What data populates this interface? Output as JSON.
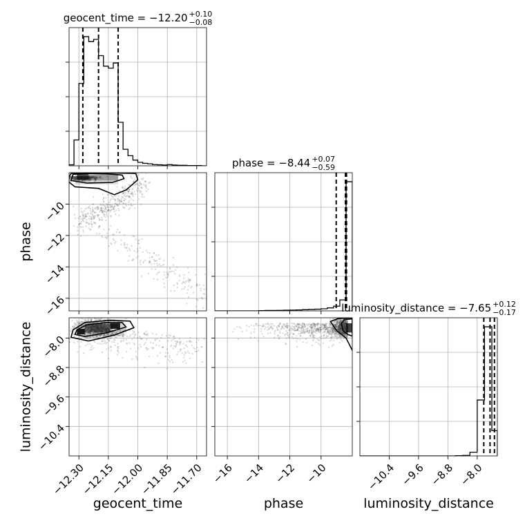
{
  "chart_data": {
    "type": "corner",
    "parameters": [
      "geocent_time",
      "phase",
      "luminosity_distance"
    ],
    "axis_labels": {
      "geocent_time": "geocent_time",
      "phase": "phase",
      "luminosity_distance": "luminosity_distance"
    },
    "titles": [
      {
        "param": "geocent_time",
        "text": "geocent_time = −12.20",
        "plus": "+0.10",
        "minus": "−0.08",
        "median": -12.2,
        "err_plus": 0.1,
        "err_minus": 0.08
      },
      {
        "param": "phase",
        "text": "phase = −8.44",
        "plus": "+0.07",
        "minus": "−0.59",
        "median": -8.44,
        "err_plus": 0.07,
        "err_minus": 0.59
      },
      {
        "param": "luminosity_distance",
        "text": "luminosity_distance = −7.65",
        "plus": "+0.12",
        "minus": "−0.17",
        "median": -7.65,
        "err_plus": 0.12,
        "err_minus": 0.17
      }
    ],
    "ranges": {
      "geocent_time": [
        -12.35,
        -11.65
      ],
      "phase": [
        -16.8,
        -8.0
      ],
      "luminosity_distance": [
        -11.2,
        -7.45
      ]
    },
    "ticks": {
      "geocent_time": [
        {
          "value": -12.3,
          "label": "−12.30"
        },
        {
          "value": -12.15,
          "label": "−12.15"
        },
        {
          "value": -12.0,
          "label": "−12.00"
        },
        {
          "value": -11.85,
          "label": "−11.85"
        },
        {
          "value": -11.7,
          "label": "−11.70"
        }
      ],
      "phase": [
        {
          "value": -16,
          "label": "−16"
        },
        {
          "value": -14,
          "label": "−14"
        },
        {
          "value": -12,
          "label": "−12"
        },
        {
          "value": -10,
          "label": "−10"
        }
      ],
      "luminosity_distance": [
        {
          "value": -10.4,
          "label": "−10.4"
        },
        {
          "value": -9.6,
          "label": "−9.6"
        },
        {
          "value": -8.8,
          "label": "−8.8"
        },
        {
          "value": -8.0,
          "label": "−8.0"
        }
      ]
    },
    "histograms": {
      "geocent_time": {
        "edges": [
          -12.35,
          -12.325,
          -12.3,
          -12.275,
          -12.25,
          -12.225,
          -12.2,
          -12.175,
          -12.15,
          -12.125,
          -12.1,
          -12.075,
          -12.05,
          -12.025,
          -12.0,
          -11.975,
          -11.95,
          -11.925,
          -11.9,
          -11.875,
          -11.85,
          -11.825,
          -11.8,
          -11.775,
          -11.75,
          -11.725,
          -11.7,
          -11.675,
          -11.65
        ],
        "counts": [
          4,
          105,
          335,
          525,
          505,
          514,
          448,
          405,
          397,
          418,
          177,
          67,
          41,
          23,
          14,
          10,
          8,
          5,
          4,
          3,
          5,
          3,
          2,
          2,
          1,
          1,
          1,
          0
        ]
      },
      "phase": {
        "edges": [
          -16.8,
          -16.4,
          -16.0,
          -15.6,
          -15.2,
          -14.8,
          -14.4,
          -14.0,
          -13.6,
          -13.2,
          -12.8,
          -12.4,
          -12.0,
          -11.6,
          -11.2,
          -10.8,
          -10.4,
          -10.0,
          -9.6,
          -9.2,
          -8.8,
          -8.4,
          -8.0
        ],
        "counts": [
          0,
          0,
          0,
          0,
          0,
          0,
          0,
          2,
          3,
          3,
          4,
          5,
          6,
          7,
          9,
          11,
          13,
          16,
          23,
          36,
          85,
          1000
        ]
      },
      "luminosity_distance": {
        "edges": [
          -11.2,
          -11.0,
          -10.8,
          -10.6,
          -10.4,
          -10.2,
          -10.0,
          -9.8,
          -9.6,
          -9.4,
          -9.2,
          -9.0,
          -8.8,
          -8.6,
          -8.4,
          -8.2,
          -8.0,
          -7.8,
          -7.6,
          -7.45
        ],
        "counts": [
          0,
          0,
          0,
          0,
          0,
          0,
          0,
          0,
          0,
          0,
          0,
          0,
          0,
          1,
          2,
          14,
          210,
          485,
          95
        ]
      }
    },
    "quantiles": {
      "geocent_time": [
        -12.28,
        -12.2,
        -12.1
      ],
      "phase": [
        -9.03,
        -8.44,
        -8.37
      ],
      "luminosity_distance": [
        -7.82,
        -7.65,
        -7.53
      ]
    },
    "pairs": [
      {
        "x": "geocent_time",
        "y": "phase",
        "mode_x": -12.28,
        "mode_y": -8.25
      },
      {
        "x": "geocent_time",
        "y": "luminosity_distance",
        "mode_x": -12.2,
        "mode_y": -7.72
      },
      {
        "x": "phase",
        "y": "luminosity_distance",
        "mode_x": -8.1,
        "mode_y": -7.72
      }
    ],
    "grid": true,
    "colors": {
      "line": "#000000",
      "samples": "#555555",
      "density": "#000000",
      "grid": "#b0b0b0"
    }
  }
}
